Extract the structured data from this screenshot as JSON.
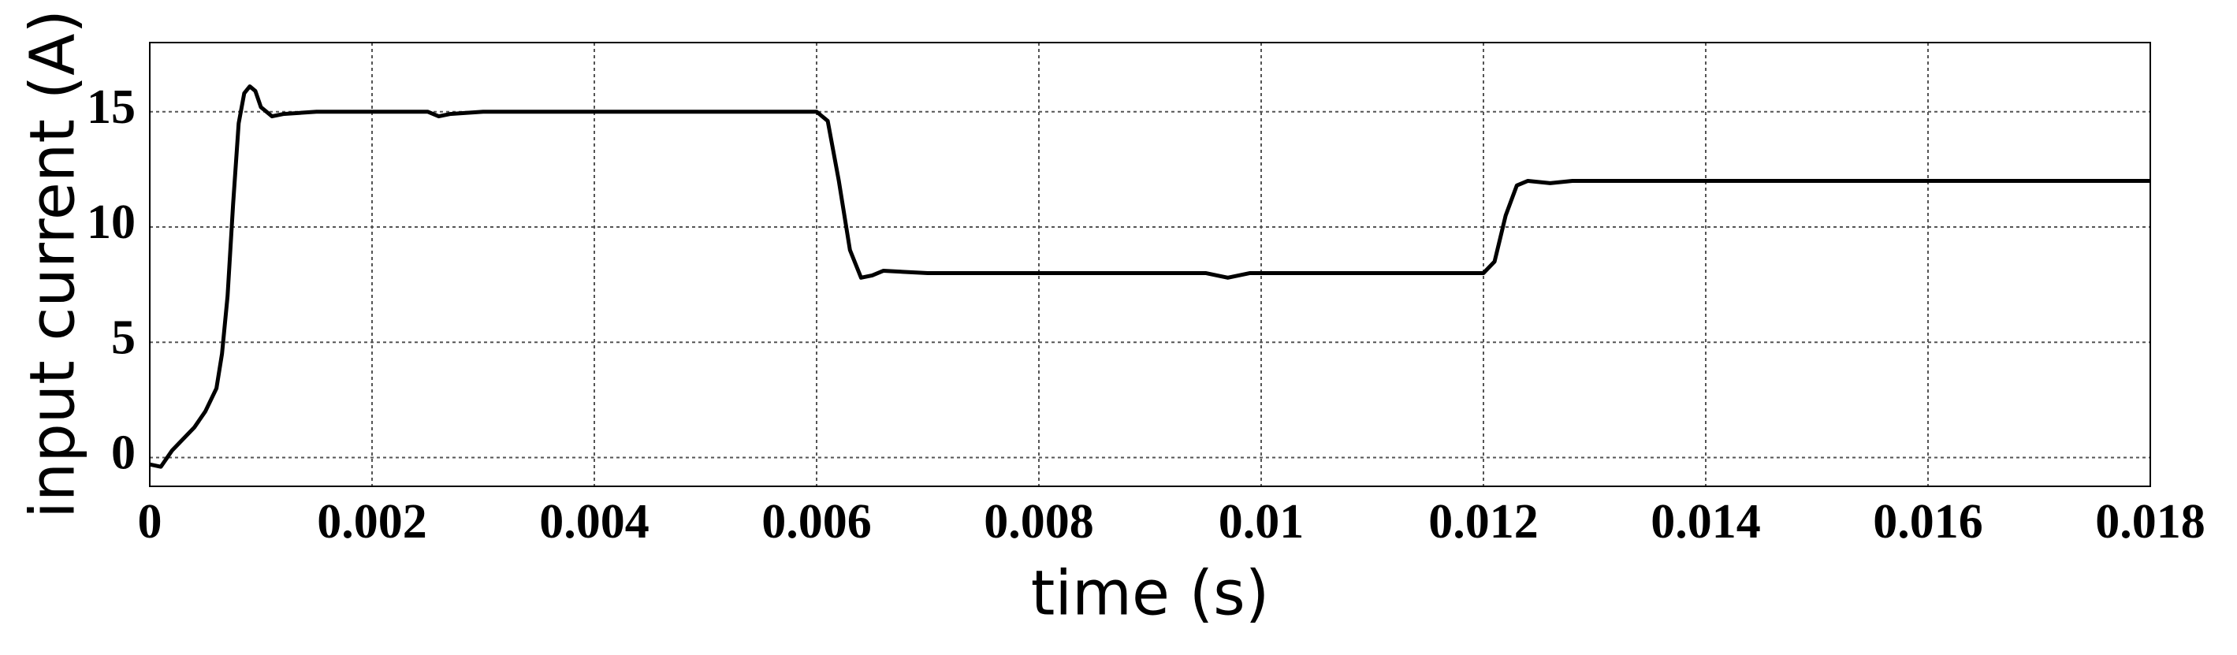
{
  "chart_data": {
    "type": "line",
    "xlabel": "time (s)",
    "ylabel": "input current (A)",
    "xlim": [
      0,
      0.018
    ],
    "ylim": [
      -1.25,
      18
    ],
    "xticks": [
      0,
      0.002,
      0.004,
      0.006,
      0.008,
      0.01,
      0.012,
      0.014,
      0.016,
      0.018
    ],
    "yticks": [
      0,
      5,
      10,
      15
    ],
    "grid": true,
    "x": [
      0,
      0.0001,
      0.0002,
      0.0004,
      0.0005,
      0.0006,
      0.00065,
      0.0007,
      0.00075,
      0.0008,
      0.00085,
      0.0009,
      0.00095,
      0.001,
      0.0011,
      0.0012,
      0.0015,
      0.0025,
      0.0026,
      0.0027,
      0.003,
      0.006,
      0.0061,
      0.0062,
      0.0063,
      0.0064,
      0.0065,
      0.0066,
      0.007,
      0.0095,
      0.0097,
      0.0099,
      0.012,
      0.0121,
      0.0122,
      0.0123,
      0.0124,
      0.0126,
      0.0128,
      0.018
    ],
    "series": [
      {
        "color": "#000000",
        "values": [
          -0.3,
          -0.4,
          0.3,
          1.3,
          2.0,
          3.0,
          4.5,
          7,
          11,
          14.5,
          15.8,
          16.1,
          15.9,
          15.2,
          14.8,
          14.9,
          15.0,
          15.0,
          14.8,
          14.9,
          15.0,
          15.0,
          14.6,
          12,
          9,
          7.8,
          7.9,
          8.1,
          8.0,
          8.0,
          7.8,
          8.0,
          8.0,
          8.5,
          10.5,
          11.8,
          12.0,
          11.9,
          12.0,
          12.0
        ]
      }
    ]
  }
}
